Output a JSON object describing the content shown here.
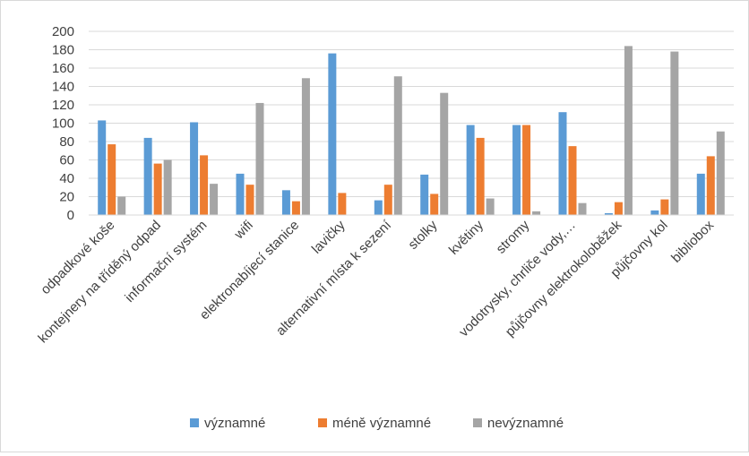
{
  "chart_data": {
    "type": "bar",
    "title": "",
    "xlabel": "",
    "ylabel": "",
    "ylim": [
      0,
      200
    ],
    "yticks": [
      0,
      20,
      40,
      60,
      80,
      100,
      120,
      140,
      160,
      180,
      200
    ],
    "grid": true,
    "legend_position": "bottom",
    "categories": [
      "odpadkové koše",
      "kontejnery na tříděný odpad",
      "informační systém",
      "wifi",
      "elektronabíjecí stanice",
      "lavičky",
      "alternativní místa k sezení",
      "stolky",
      "květiny",
      "stromy",
      "vodotrysky, chrliče vody,…",
      "půjčovny elektrokoloběžek",
      "půjčovny kol",
      "bibliobox"
    ],
    "series": [
      {
        "name": "významné",
        "color": "#5b9bd5",
        "values": [
          103,
          84,
          101,
          45,
          27,
          176,
          16,
          44,
          98,
          98,
          112,
          2,
          5,
          45
        ]
      },
      {
        "name": "méně významné",
        "color": "#ed7d31",
        "values": [
          77,
          56,
          65,
          33,
          15,
          24,
          33,
          23,
          84,
          98,
          75,
          14,
          17,
          64
        ]
      },
      {
        "name": "nevýznamné",
        "color": "#a5a5a5",
        "values": [
          20,
          60,
          34,
          122,
          149,
          0,
          151,
          133,
          18,
          4,
          13,
          184,
          178,
          91
        ]
      }
    ]
  }
}
